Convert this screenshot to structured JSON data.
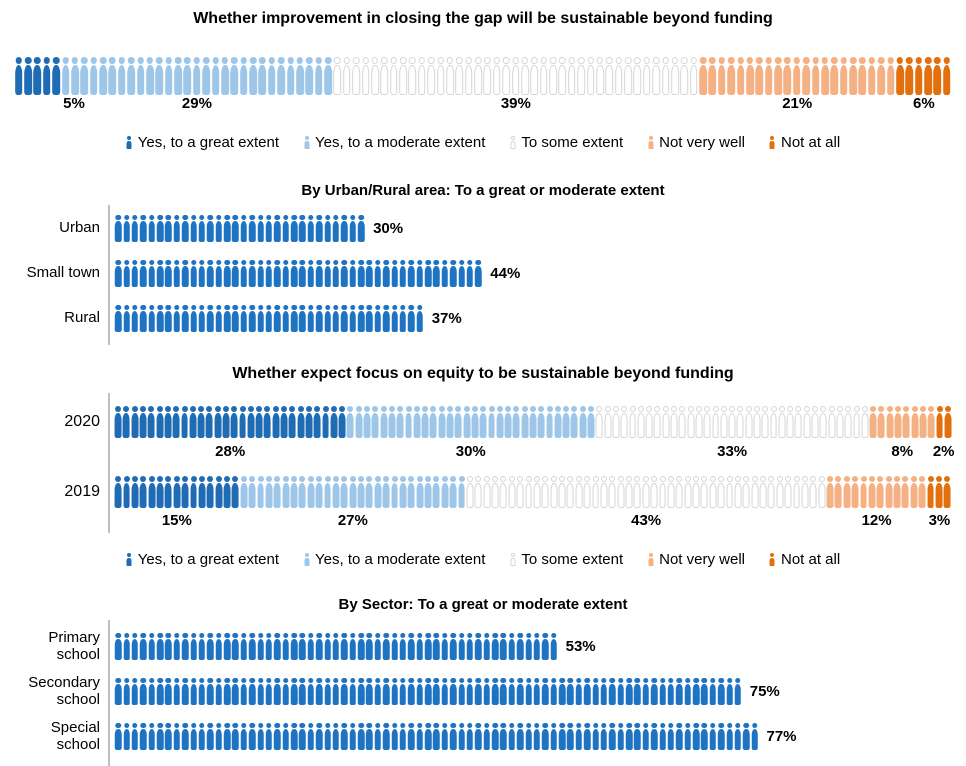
{
  "colors": {
    "great": "#1F6CB4",
    "moderate": "#9DC6E8",
    "some_stroke": "#D5D5D5",
    "not_very": "#F4B183",
    "not_at_all": "#E2700F",
    "single": "#1E73C2",
    "axis": "#BFBFBF"
  },
  "legend": {
    "items": [
      {
        "label": "Yes, to a great extent",
        "key": "great"
      },
      {
        "label": "Yes, to a moderate extent",
        "key": "moderate"
      },
      {
        "label": "To some extent",
        "key": "some"
      },
      {
        "label": "Not very well",
        "key": "not_very"
      },
      {
        "label": "Not at all",
        "key": "not_at_all"
      }
    ]
  },
  "chart_data": [
    {
      "type": "pictogram-stacked",
      "title": "Whether improvement in closing the gap will be sustainable beyond funding",
      "unit": "1 person icon = 1%",
      "categories": [
        "Yes, to a great extent",
        "Yes, to a moderate extent",
        "To some extent",
        "Not very well",
        "Not at all"
      ],
      "keys": [
        "great",
        "moderate",
        "some",
        "not_very",
        "not_at_all"
      ],
      "values": [
        5,
        29,
        39,
        21,
        6
      ],
      "labels": [
        "5%",
        "29%",
        "39%",
        "21%",
        "6%"
      ],
      "legend_position": "bottom"
    },
    {
      "type": "pictogram-bar",
      "title": "By Urban/Rural area: To a great or moderate extent",
      "unit": "1 person icon = 1%",
      "categories": [
        "Urban",
        "Small town",
        "Rural"
      ],
      "values": [
        30,
        44,
        37
      ],
      "labels": [
        "30%",
        "44%",
        "37%"
      ],
      "xlim": [
        0,
        100
      ]
    },
    {
      "type": "pictogram-stacked",
      "title": "Whether expect focus on equity to be sustainable beyond funding",
      "unit": "1 person icon = 1%",
      "categories": [
        "Yes, to a great extent",
        "Yes, to a moderate extent",
        "To some extent",
        "Not very well",
        "Not at all"
      ],
      "keys": [
        "great",
        "moderate",
        "some",
        "not_very",
        "not_at_all"
      ],
      "series": [
        {
          "name": "2020",
          "values": [
            28,
            30,
            33,
            8,
            2
          ],
          "labels": [
            "28%",
            "30%",
            "33%",
            "8%",
            "2%"
          ]
        },
        {
          "name": "2019",
          "values": [
            15,
            27,
            43,
            12,
            3
          ],
          "labels": [
            "15%",
            "27%",
            "43%",
            "12%",
            "3%"
          ]
        }
      ],
      "legend_position": "bottom"
    },
    {
      "type": "pictogram-bar",
      "title": "By Sector: To a great or moderate extent",
      "unit": "1 person icon = 1%",
      "categories": [
        "Primary school",
        "Secondary school",
        "Special school"
      ],
      "values": [
        53,
        75,
        77
      ],
      "labels": [
        "53%",
        "75%",
        "77%"
      ],
      "xlim": [
        0,
        100
      ]
    }
  ]
}
